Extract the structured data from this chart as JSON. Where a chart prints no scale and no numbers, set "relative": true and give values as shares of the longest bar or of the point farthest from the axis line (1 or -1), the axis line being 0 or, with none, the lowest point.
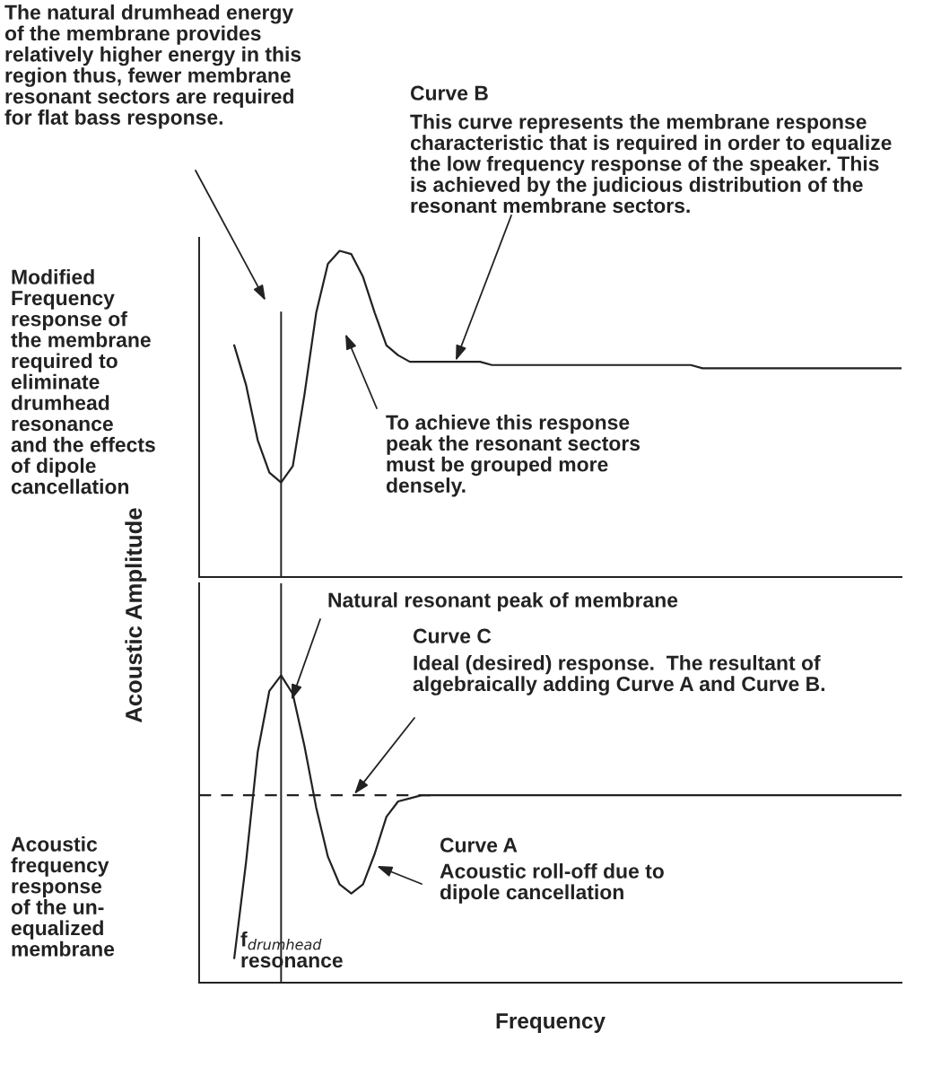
{
  "chart_data": [
    {
      "type": "line",
      "relative": true,
      "categories": [
        null,
        null,
        null,
        null,
        null,
        null,
        null,
        null,
        null,
        null,
        null,
        null,
        null,
        null,
        null,
        null,
        null,
        null,
        null,
        null,
        null,
        null,
        null,
        null,
        null,
        null,
        null,
        null,
        null,
        null,
        null,
        null,
        null,
        null,
        null,
        null,
        null,
        null,
        null,
        null,
        null,
        null,
        null,
        null,
        null,
        null,
        null,
        null,
        null,
        null,
        null,
        null,
        null,
        null,
        null,
        null,
        null,
        null,
        null,
        null,
        null
      ],
      "series": [
        {
          "color": "#222222",
          "values": [
            null,
            null,
            null,
            0.71,
            0.59,
            0.42,
            0.32,
            0.29,
            0.34,
            0.56,
            0.81,
            0.96,
            1.0,
            0.99,
            0.92,
            0.81,
            0.71,
            0.68,
            0.66,
            0.66,
            0.66,
            0.66,
            0.66,
            0.66,
            0.66,
            0.65,
            0.65,
            0.65,
            0.65,
            0.65,
            0.65,
            0.65,
            0.65,
            0.65,
            0.65,
            0.65,
            0.65,
            0.65,
            0.65,
            0.65,
            0.65,
            0.65,
            0.65,
            0.64,
            0.64,
            0.64,
            0.64,
            0.64,
            0.64,
            0.64,
            0.64,
            0.64,
            0.64,
            0.64,
            0.64,
            0.64,
            0.64,
            0.64,
            0.64,
            0.64,
            0.64
          ]
        }
      ],
      "tick_labels": false,
      "annotations": [
        "The natural drumhead energy\nof the membrane provides\nrelatively higher energy in this\nregion thus, fewer membrane\nresonant sectors are required\nfor flat bass response.",
        "Curve B",
        "This curve represents the membrane response\ncharacteristic that is required in order to equalize\nthe low frequency response of the speaker. This\nis achieved by the judicious distribution of the\nresonant membrane sectors.",
        "Modified\nFrequency\nresponse of\nthe membrane\nrequired to\neliminate\ndrumhead\nresonance\nand the effects\nof dipole\ncancellation",
        "To achieve this response\npeak the resonant sectors\nmust be grouped more\ndensely."
      ]
    },
    {
      "type": "line",
      "relative": true,
      "ylabel": "Acoustic Amplitude",
      "xlabel": "Frequency",
      "categories": [
        null,
        null,
        null,
        null,
        null,
        null,
        null,
        null,
        null,
        null,
        null,
        null,
        null,
        null,
        null,
        null,
        null,
        null,
        null,
        null,
        null,
        null,
        null,
        null,
        null,
        null,
        null,
        null,
        null,
        null,
        null,
        null,
        null,
        null,
        null,
        null,
        null,
        null,
        null,
        null,
        null,
        null,
        null,
        null,
        null,
        null,
        null,
        null,
        null,
        null,
        null,
        null,
        null,
        null,
        null,
        null,
        null,
        null,
        null,
        null,
        null
      ],
      "series": [
        {
          "color": "#222222",
          "values": [
            null,
            null,
            null,
            0.08,
            0.39,
            0.75,
            0.95,
            1.0,
            0.94,
            0.77,
            0.57,
            0.41,
            0.32,
            0.29,
            0.32,
            0.42,
            0.54,
            0.59,
            0.6,
            0.61,
            0.61,
            0.61,
            0.61,
            0.61,
            0.61,
            0.61,
            0.61,
            0.61,
            0.61,
            0.61,
            0.61,
            0.61,
            0.61,
            0.61,
            0.61,
            0.61,
            0.61,
            0.61,
            0.61,
            0.61,
            0.61,
            0.61,
            0.61,
            0.61,
            0.61,
            0.61,
            0.61,
            0.61,
            0.61,
            0.61,
            0.61,
            0.61,
            0.61,
            0.61,
            0.61,
            0.61,
            0.61,
            0.61,
            0.61,
            0.61,
            0.61
          ]
        },
        {
          "color": "#222222",
          "line_style": "dashed",
          "values": [
            0.61,
            0.61,
            0.61,
            0.61,
            0.61,
            0.61,
            0.61,
            0.61,
            0.61,
            0.61,
            0.61,
            0.61,
            0.61,
            0.61,
            0.61,
            0.61,
            0.61,
            0.61,
            0.61,
            0.61,
            0.61,
            null,
            null,
            null,
            null,
            null,
            null,
            null,
            null,
            null,
            null,
            null,
            null,
            null,
            null,
            null,
            null,
            null,
            null,
            null,
            null,
            null,
            null,
            null,
            null,
            null,
            null,
            null,
            null,
            null,
            null,
            null,
            null,
            null,
            null,
            null,
            null,
            null,
            null,
            null,
            null
          ]
        }
      ],
      "tick_labels": false,
      "annotations": [
        "Natural resonant peak of membrane",
        "Curve C",
        "Ideal (desired) response.  The resultant of\nalgebraically adding Curve A and Curve B.",
        "Curve A",
        "Acoustic roll-off due to\ndipole cancellation",
        "Acoustic\nfrequency\nresponse\nof the un-\nequalized\nmembrane",
        "f$_{drumhead}$\nresonance"
      ]
    }
  ]
}
